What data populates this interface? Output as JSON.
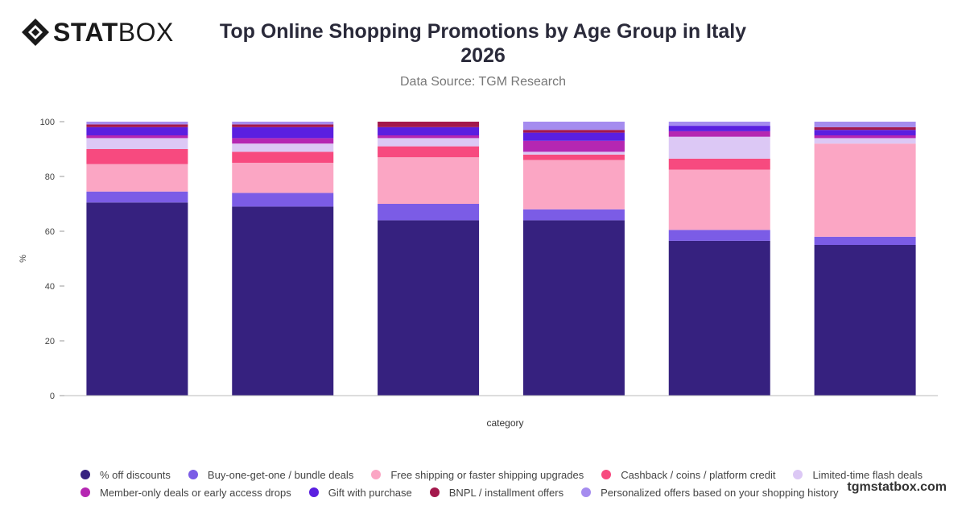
{
  "brand": {
    "logo_bold": "STAT",
    "logo_light": "BOX",
    "watermark": "tgmstatbox.com"
  },
  "header": {
    "title": "Top Online Shopping Promotions by Age Group in Italy 2026",
    "subtitle": "Data Source: TGM Research"
  },
  "chart_data": {
    "type": "bar",
    "stacked": true,
    "categories": [
      "",
      "",
      "",
      "",
      "",
      ""
    ],
    "xlabel": "category",
    "ylabel": "%",
    "ylim": [
      0,
      100
    ],
    "yticks": [
      0,
      20,
      40,
      60,
      80,
      100
    ],
    "grid": false,
    "legend_position": "bottom",
    "series": [
      {
        "name": "% off discounts",
        "color": "#36217f",
        "values": [
          70.5,
          69,
          64,
          64,
          56.5,
          55
        ]
      },
      {
        "name": "Buy-one-get-one / bundle deals",
        "color": "#7b5ce6",
        "values": [
          4,
          5,
          6,
          4,
          4,
          3
        ]
      },
      {
        "name": "Free shipping or faster shipping upgrades",
        "color": "#fba6c4",
        "values": [
          10,
          11,
          17,
          18,
          22,
          34
        ]
      },
      {
        "name": "Cashback / coins / platform credit",
        "color": "#f74a7f",
        "values": [
          5.5,
          4,
          4,
          2,
          4,
          0
        ]
      },
      {
        "name": "Limited-time flash deals",
        "color": "#dcc8f5",
        "values": [
          4,
          3,
          3,
          1,
          8,
          2
        ]
      },
      {
        "name": "Member-only deals or early access drops",
        "color": "#b527b2",
        "values": [
          1,
          2,
          1,
          4,
          2,
          1
        ]
      },
      {
        "name": "Gift with purchase",
        "color": "#5a1fe0",
        "values": [
          3,
          4,
          3,
          3,
          2,
          2
        ]
      },
      {
        "name": "BNPL / installment offers",
        "color": "#a3184c",
        "values": [
          1,
          1,
          2,
          1,
          0,
          1
        ]
      },
      {
        "name": "Personalized offers based on your shopping history",
        "color": "#a58cef",
        "values": [
          1,
          1,
          0,
          3,
          1.5,
          2
        ]
      }
    ]
  }
}
